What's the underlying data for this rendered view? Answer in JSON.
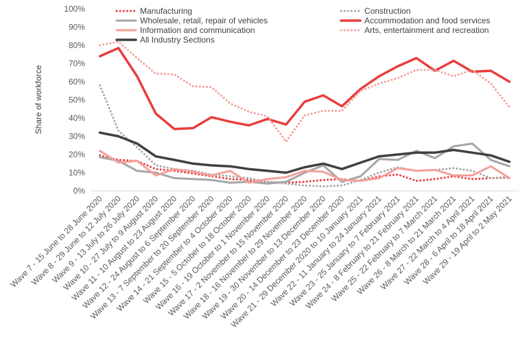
{
  "chart_data": {
    "type": "line",
    "ylabel": "Share of workforce",
    "ylim": [
      0,
      100
    ],
    "yticks": [
      "0%",
      "10%",
      "20%",
      "30%",
      "40%",
      "50%",
      "60%",
      "70%",
      "80%",
      "90%",
      "100%"
    ],
    "grid": false,
    "legend_position": "top",
    "categories": [
      "Wave 7 - 15 June to 28 June 2020",
      "Wave 8 - 29 June to 12 July 2020",
      "Wave 9 - 13 July to 26 July 2020",
      "Wave 10 - 27 July to 9 August 2020",
      "Wave 11 - 10 August to 23 August 2020",
      "Wave 12 - 24 August to 6 September 2020",
      "Wave 13 - 7 September to 20 September 2020",
      "Wave 14 - 21 September to 4 October 2020",
      "Wave 15 - 5 October to 18 October 2020",
      "Wave 16 - 19 October to 1 November 2020",
      "Wave 17 - 2 November to 15 November 2020",
      "Wave 18 - 16 November to 29 November 2020",
      "Wave 19 - 30 November to 13 December 2020",
      "Wave 20 - 14 December to 23 December 2020",
      "Wave 21 - 29 December 2020 to 10 January 2021",
      "Wave 22 - 11 January to 24 January 2021",
      "Wave 23 - 25 January to 7 February 2021",
      "Wave 24 - 8 February to 21 February 2021",
      "Wave 25 - 22 February to 7 March 2021",
      "Wave 26 - 8 March to 21 March 2021",
      "Wave 27 - 22 March to 4 April 2021",
      "Wave 28 - 6 April to 18 April 2021",
      "Wave 29 - 19 April to 2 May 2021"
    ],
    "series": [
      {
        "name": "Manufacturing",
        "color": "#e83e3e",
        "dash": "dot",
        "width": 3,
        "values": [
          19.5,
          17,
          16.5,
          12,
          11,
          9.5,
          8,
          6.5,
          6,
          5,
          4.5,
          5,
          6,
          6.5,
          5.5,
          8,
          9,
          5.5,
          6.5,
          8,
          6.5,
          7,
          7.5
        ]
      },
      {
        "name": "Construction",
        "color": "#a6a6a6",
        "dash": "dot",
        "width": 3,
        "values": [
          58,
          33,
          24,
          14,
          12,
          11,
          9,
          8,
          7,
          5,
          4,
          3,
          2.5,
          3,
          6,
          10,
          13,
          11,
          11.5,
          12.5,
          11,
          7,
          7
        ]
      },
      {
        "name": "Wholesale, retail, repair of vehicles",
        "color": "#a6a6a6",
        "dash": "solid",
        "width": 3,
        "values": [
          18.5,
          16.5,
          11,
          10,
          7,
          6.5,
          6,
          4.5,
          5,
          4,
          5,
          10,
          14,
          5,
          8,
          17.5,
          17,
          22,
          18,
          24.5,
          26,
          17,
          13.5
        ]
      },
      {
        "name": "Accommodation and food services",
        "color": "#e83e3e",
        "dash": "solid",
        "width": 3.5,
        "values": [
          74,
          78.5,
          63,
          42.5,
          34,
          34.5,
          40.5,
          38,
          36,
          39.5,
          36.5,
          49,
          52.5,
          46.5,
          56,
          63,
          68.5,
          73,
          66,
          71.5,
          65.5,
          66,
          60
        ]
      },
      {
        "name": "Information and communication",
        "color": "#f4a09a",
        "dash": "solid",
        "width": 3,
        "values": [
          22,
          15.5,
          16.5,
          8.5,
          12,
          10.5,
          8.5,
          11,
          4.5,
          6.5,
          7.5,
          11,
          10.5,
          6,
          5.5,
          7,
          12.5,
          11,
          11.5,
          8.5,
          8.5,
          13.5,
          7
        ]
      },
      {
        "name": "Arts, entertainment and recreation",
        "color": "#f4a09a",
        "dash": "dot",
        "width": 3,
        "values": [
          80,
          82,
          73,
          64.5,
          64,
          57.5,
          57,
          48,
          43.5,
          41,
          27,
          41.5,
          44,
          44,
          55,
          59,
          62,
          66.5,
          66.5,
          63,
          66.5,
          59,
          46
        ]
      },
      {
        "name": "All Industry Sections",
        "color": "#404040",
        "dash": "solid",
        "width": 3.5,
        "values": [
          32,
          30,
          26,
          19,
          17,
          15,
          14,
          13.5,
          12,
          11,
          10,
          13,
          15,
          12,
          15.5,
          19,
          20,
          21,
          21,
          22.5,
          21,
          19.5,
          16
        ]
      }
    ]
  }
}
